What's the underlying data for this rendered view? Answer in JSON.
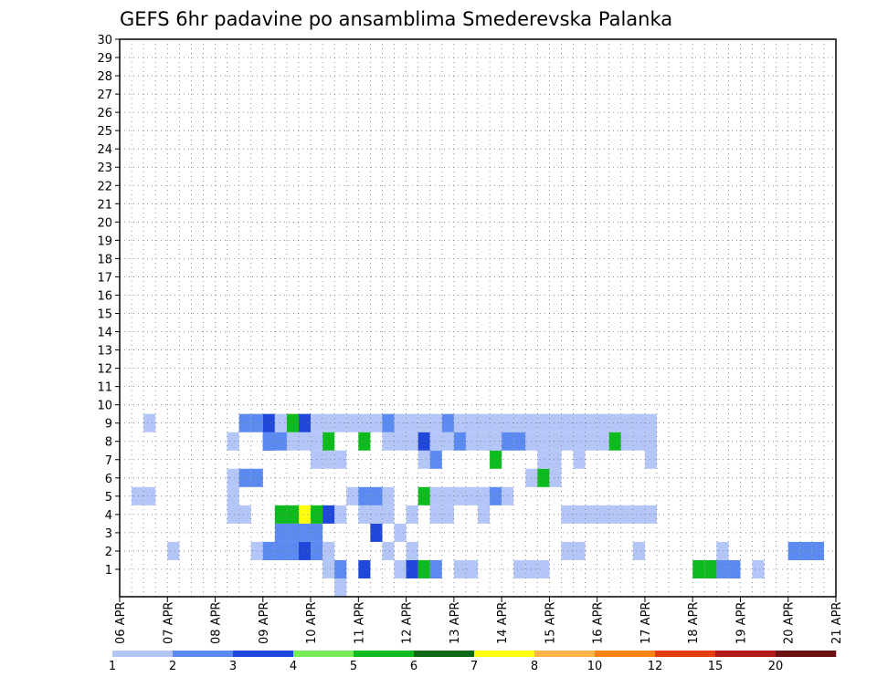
{
  "chart_data": {
    "type": "heatmap",
    "title": "GEFS 6hr padavine po ansamblima Smederevska Palanka",
    "xlabel": "",
    "ylabel": "",
    "x_tick_labels": [
      "06 APR",
      "07 APR",
      "08 APR",
      "09 APR",
      "10 APR",
      "11 APR",
      "12 APR",
      "13 APR",
      "14 APR",
      "15 APR",
      "16 APR",
      "17 APR",
      "18 APR",
      "19 APR",
      "20 APR",
      "21 APR"
    ],
    "y_tick_labels": [
      "1",
      "2",
      "3",
      "4",
      "5",
      "6",
      "7",
      "8",
      "9",
      "10",
      "11",
      "12",
      "13",
      "14",
      "15",
      "16",
      "17",
      "18",
      "19",
      "20",
      "21",
      "22",
      "23",
      "24",
      "25",
      "26",
      "27",
      "28",
      "29",
      "30"
    ],
    "x_range": [
      "06 APR 00Z",
      "21 APR 00Z"
    ],
    "time_step_hours": 6,
    "y_range": [
      0,
      30
    ],
    "grid": true,
    "legend": {
      "placement": "bottom",
      "levels": [
        "1",
        "2",
        "3",
        "4",
        "5",
        "6",
        "7",
        "8",
        "10",
        "12",
        "15",
        "20"
      ],
      "colors": [
        "#b3c6f7",
        "#5b8af0",
        "#1f47d9",
        "#77ec5a",
        "#0dbb1e",
        "#0e6a12",
        "#ffff0f",
        "#fdb54b",
        "#fb8214",
        "#e43d10",
        "#b31919",
        "#6d1010"
      ]
    },
    "cells": [
      [
        18,
        0,
        1
      ],
      [
        24,
        1,
        1
      ],
      [
        24,
        2,
        1
      ],
      [
        37,
        2,
        1
      ],
      [
        38,
        2,
        1
      ],
      [
        43,
        2,
        1
      ],
      [
        50,
        2,
        1
      ],
      [
        56,
        2,
        2
      ],
      [
        57,
        2,
        2
      ],
      [
        58,
        2,
        2
      ],
      [
        77,
        2,
        1
      ],
      [
        17,
        1,
        1
      ],
      [
        18,
        1,
        2
      ],
      [
        20,
        1,
        3
      ],
      [
        23,
        1,
        1
      ],
      [
        24,
        1,
        3
      ],
      [
        25,
        1,
        5
      ],
      [
        26,
        1,
        2
      ],
      [
        28,
        1,
        1
      ],
      [
        29,
        1,
        1
      ],
      [
        33,
        1,
        1
      ],
      [
        34,
        1,
        1
      ],
      [
        35,
        1,
        1
      ],
      [
        50,
        1,
        2
      ],
      [
        51,
        1,
        2
      ],
      [
        48,
        1,
        5
      ],
      [
        49,
        1,
        5
      ],
      [
        53,
        1,
        1
      ],
      [
        4,
        2,
        1
      ],
      [
        11,
        2,
        1
      ],
      [
        12,
        2,
        2
      ],
      [
        13,
        2,
        2
      ],
      [
        14,
        2,
        2
      ],
      [
        15,
        2,
        3
      ],
      [
        16,
        2,
        2
      ],
      [
        17,
        2,
        1
      ],
      [
        22,
        2,
        1
      ],
      [
        21,
        3,
        3
      ],
      [
        23,
        3,
        1
      ],
      [
        13,
        3,
        2
      ],
      [
        14,
        3,
        2
      ],
      [
        15,
        3,
        2
      ],
      [
        16,
        3,
        2
      ],
      [
        9,
        4,
        1
      ],
      [
        10,
        4,
        1
      ],
      [
        13,
        4,
        5
      ],
      [
        14,
        4,
        5
      ],
      [
        15,
        4,
        7
      ],
      [
        16,
        4,
        5
      ],
      [
        17,
        4,
        3
      ],
      [
        18,
        4,
        1
      ],
      [
        20,
        4,
        1
      ],
      [
        21,
        4,
        1
      ],
      [
        22,
        4,
        1
      ],
      [
        24,
        4,
        1
      ],
      [
        26,
        4,
        1
      ],
      [
        27,
        4,
        1
      ],
      [
        30,
        4,
        1
      ],
      [
        37,
        4,
        1
      ],
      [
        38,
        4,
        1
      ],
      [
        39,
        4,
        1
      ],
      [
        40,
        4,
        1
      ],
      [
        41,
        4,
        1
      ],
      [
        42,
        4,
        1
      ],
      [
        43,
        4,
        1
      ],
      [
        44,
        4,
        1
      ],
      [
        1,
        5,
        1
      ],
      [
        2,
        5,
        1
      ],
      [
        9,
        5,
        1
      ],
      [
        19,
        5,
        1
      ],
      [
        20,
        5,
        2
      ],
      [
        21,
        5,
        2
      ],
      [
        22,
        5,
        1
      ],
      [
        25,
        5,
        5
      ],
      [
        26,
        5,
        1
      ],
      [
        27,
        5,
        1
      ],
      [
        28,
        5,
        1
      ],
      [
        29,
        5,
        1
      ],
      [
        30,
        5,
        1
      ],
      [
        31,
        5,
        2
      ],
      [
        32,
        5,
        1
      ],
      [
        34,
        6,
        1
      ],
      [
        35,
        6,
        5
      ],
      [
        36,
        6,
        1
      ],
      [
        9,
        6,
        1
      ],
      [
        10,
        6,
        2
      ],
      [
        11,
        6,
        2
      ],
      [
        25,
        7,
        1
      ],
      [
        26,
        7,
        2
      ],
      [
        18,
        7,
        1
      ],
      [
        16,
        7,
        1
      ],
      [
        17,
        7,
        1
      ],
      [
        31,
        7,
        5
      ],
      [
        35,
        7,
        1
      ],
      [
        36,
        7,
        1
      ],
      [
        38,
        7,
        1
      ],
      [
        44,
        7,
        1
      ],
      [
        17,
        8,
        5
      ],
      [
        12,
        8,
        2
      ],
      [
        13,
        8,
        2
      ],
      [
        14,
        8,
        1
      ],
      [
        15,
        8,
        1
      ],
      [
        16,
        8,
        1
      ],
      [
        12,
        8,
        2
      ],
      [
        12,
        8,
        2
      ],
      [
        9,
        8,
        1
      ],
      [
        20,
        8,
        5
      ],
      [
        22,
        8,
        1
      ],
      [
        23,
        8,
        1
      ],
      [
        24,
        8,
        1
      ],
      [
        25,
        8,
        3
      ],
      [
        26,
        8,
        1
      ],
      [
        27,
        8,
        1
      ],
      [
        28,
        8,
        2
      ],
      [
        29,
        8,
        1
      ],
      [
        30,
        8,
        1
      ],
      [
        31,
        8,
        1
      ],
      [
        32,
        8,
        2
      ],
      [
        33,
        8,
        2
      ],
      [
        34,
        8,
        1
      ],
      [
        35,
        8,
        1
      ],
      [
        36,
        8,
        1
      ],
      [
        37,
        8,
        1
      ],
      [
        38,
        8,
        1
      ],
      [
        39,
        8,
        1
      ],
      [
        40,
        8,
        1
      ],
      [
        41,
        8,
        5
      ],
      [
        42,
        8,
        1
      ],
      [
        43,
        8,
        1
      ],
      [
        44,
        8,
        1
      ],
      [
        2,
        9,
        1
      ],
      [
        10,
        9,
        2
      ],
      [
        11,
        9,
        2
      ],
      [
        12,
        9,
        3
      ],
      [
        13,
        9,
        1
      ],
      [
        14,
        9,
        5
      ],
      [
        15,
        9,
        3
      ],
      [
        16,
        9,
        1
      ],
      [
        17,
        9,
        1
      ],
      [
        18,
        9,
        1
      ],
      [
        19,
        9,
        1
      ],
      [
        20,
        9,
        1
      ],
      [
        21,
        9,
        1
      ],
      [
        22,
        9,
        2
      ],
      [
        23,
        9,
        1
      ],
      [
        24,
        9,
        1
      ],
      [
        25,
        9,
        1
      ],
      [
        26,
        9,
        1
      ],
      [
        27,
        9,
        2
      ],
      [
        28,
        9,
        1
      ],
      [
        29,
        9,
        1
      ],
      [
        30,
        9,
        1
      ],
      [
        31,
        9,
        1
      ],
      [
        32,
        9,
        1
      ],
      [
        33,
        9,
        1
      ],
      [
        34,
        9,
        1
      ],
      [
        35,
        9,
        1
      ],
      [
        36,
        9,
        1
      ],
      [
        37,
        9,
        1
      ],
      [
        38,
        9,
        1
      ],
      [
        39,
        9,
        1
      ],
      [
        40,
        9,
        1
      ],
      [
        41,
        9,
        1
      ],
      [
        42,
        9,
        1
      ],
      [
        43,
        9,
        1
      ],
      [
        44,
        9,
        1
      ]
    ]
  }
}
